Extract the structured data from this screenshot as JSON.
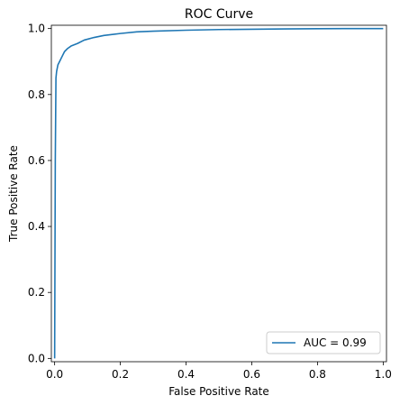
{
  "chart_data": {
    "type": "line",
    "title": "ROC Curve",
    "xlabel": "False Positive Rate",
    "ylabel": "True Positive Rate",
    "xlim": [
      -0.01,
      1.01
    ],
    "ylim": [
      -0.01,
      1.01
    ],
    "xticks": [
      0.0,
      0.2,
      0.4,
      0.6,
      0.8,
      1.0
    ],
    "xtick_labels": [
      "0.0",
      "0.2",
      "0.4",
      "0.6",
      "0.8",
      "1.0"
    ],
    "yticks": [
      0.0,
      0.2,
      0.4,
      0.6,
      0.8,
      1.0
    ],
    "ytick_labels": [
      "0.0",
      "0.2",
      "0.4",
      "0.6",
      "0.8",
      "1.0"
    ],
    "grid": false,
    "legend_position": "lower-right",
    "series": [
      {
        "name": "AUC = 0.99",
        "color": "#1f77b4",
        "x": [
          0.0,
          0.0,
          0.002,
          0.004,
          0.006,
          0.01,
          0.015,
          0.02,
          0.03,
          0.04,
          0.05,
          0.07,
          0.09,
          0.12,
          0.15,
          0.2,
          0.25,
          0.3,
          0.4,
          0.5,
          0.6,
          0.7,
          0.8,
          0.9,
          1.0
        ],
        "y": [
          0.0,
          0.0,
          0.6,
          0.85,
          0.87,
          0.89,
          0.9,
          0.91,
          0.93,
          0.94,
          0.947,
          0.955,
          0.965,
          0.973,
          0.979,
          0.985,
          0.99,
          0.992,
          0.995,
          0.997,
          0.998,
          0.999,
          0.9995,
          1.0,
          1.0
        ]
      }
    ]
  }
}
